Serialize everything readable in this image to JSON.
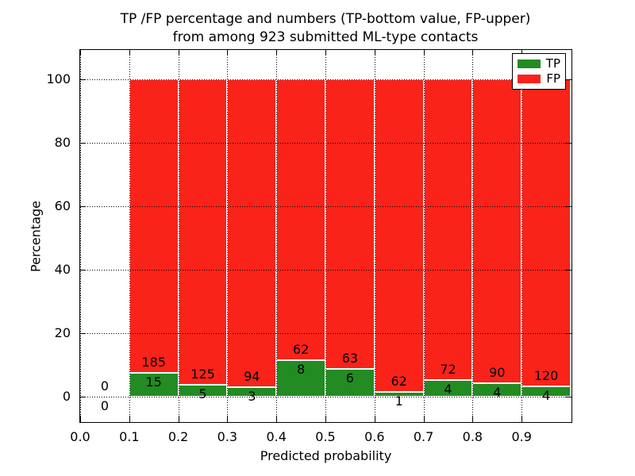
{
  "title": {
    "line1": "TP /FP percentage and numbers (TP-bottom value, FP-upper)",
    "line2": "from among 923 submitted ML-type contacts"
  },
  "axes": {
    "xlabel": "Predicted probability",
    "ylabel": "Percentage"
  },
  "legend": {
    "position": "upper right",
    "items": [
      {
        "label": "TP",
        "color": "#228b22"
      },
      {
        "label": "FP",
        "color": "#f9231a"
      }
    ]
  },
  "chart_data": {
    "type": "bar",
    "stacked": true,
    "normalized_to_percent": true,
    "title": "TP /FP percentage and numbers (TP-bottom value, FP-upper) from among 923 submitted ML-type contacts",
    "xlabel": "Predicted probability",
    "ylabel": "Percentage",
    "total_contacts": 923,
    "xlim": [
      0.0,
      1.0
    ],
    "ylim_visible": [
      -8.4,
      109.5
    ],
    "grid": "dotted",
    "legend_position": "upper right",
    "bin_width": 0.1,
    "x_ticks": [
      {
        "v": 0.0,
        "label": "0.0"
      },
      {
        "v": 0.1,
        "label": "0.1"
      },
      {
        "v": 0.2,
        "label": "0.2"
      },
      {
        "v": 0.3,
        "label": "0.3"
      },
      {
        "v": 0.4,
        "label": "0.4"
      },
      {
        "v": 0.5,
        "label": "0.5"
      },
      {
        "v": 0.6,
        "label": "0.6"
      },
      {
        "v": 0.7,
        "label": "0.7"
      },
      {
        "v": 0.8,
        "label": "0.8"
      },
      {
        "v": 0.9,
        "label": "0.9"
      }
    ],
    "y_ticks": [
      {
        "v": 0,
        "label": "0"
      },
      {
        "v": 20,
        "label": "20"
      },
      {
        "v": 40,
        "label": "40"
      },
      {
        "v": 60,
        "label": "60"
      },
      {
        "v": 80,
        "label": "80"
      },
      {
        "v": 100,
        "label": "100"
      }
    ],
    "series": [
      {
        "name": "TP",
        "color": "#228b22",
        "counts": [
          0,
          15,
          5,
          3,
          8,
          6,
          1,
          4,
          4,
          4
        ]
      },
      {
        "name": "FP",
        "color": "#f9231a",
        "counts": [
          0,
          185,
          125,
          94,
          62,
          63,
          62,
          72,
          90,
          120
        ]
      }
    ],
    "bins": [
      {
        "range": [
          0.0,
          0.1
        ],
        "tp": 0,
        "fp": 0
      },
      {
        "range": [
          0.1,
          0.2
        ],
        "tp": 15,
        "fp": 185
      },
      {
        "range": [
          0.2,
          0.3
        ],
        "tp": 5,
        "fp": 125
      },
      {
        "range": [
          0.3,
          0.4
        ],
        "tp": 3,
        "fp": 94
      },
      {
        "range": [
          0.4,
          0.5
        ],
        "tp": 8,
        "fp": 62
      },
      {
        "range": [
          0.5,
          0.6
        ],
        "tp": 6,
        "fp": 63
      },
      {
        "range": [
          0.6,
          0.7
        ],
        "tp": 1,
        "fp": 62
      },
      {
        "range": [
          0.7,
          0.8
        ],
        "tp": 4,
        "fp": 72
      },
      {
        "range": [
          0.8,
          0.9
        ],
        "tp": 4,
        "fp": 90
      },
      {
        "range": [
          0.9,
          1.0
        ],
        "tp": 4,
        "fp": 120
      }
    ]
  }
}
